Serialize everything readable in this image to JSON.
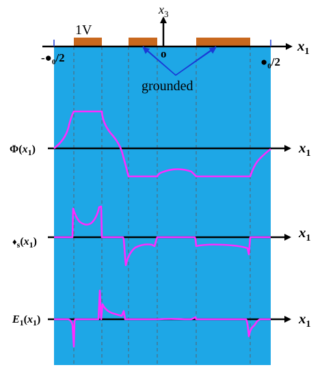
{
  "colors": {
    "background": "#1ea7e6",
    "electrode": "#c8681e",
    "curve": "#ff2bff",
    "axis": "#000000",
    "arrow": "#1a3ad6",
    "guide": "#55606e"
  },
  "top": {
    "voltage_label": "1V",
    "x3_label": "x",
    "x3_sub": "3",
    "origin_label": "o",
    "x1_label": "x",
    "x1_sub": "1",
    "left_end_label": "-●",
    "left_end_sub": "0",
    "left_end_suffix": "/2",
    "right_end_label": "●",
    "right_end_sub": "0",
    "right_end_suffix": "/2",
    "grounded_label": "grounded"
  },
  "plots": [
    {
      "name": "phi",
      "label_main": "Φ(",
      "label_var": "x",
      "label_sub": "1",
      "label_close": ")",
      "axis_label": "x",
      "axis_sub": "1"
    },
    {
      "name": "sigma",
      "label_main": "♦",
      "label_sub_s": "s",
      "label_open": "(",
      "label_var": "x",
      "label_sub": "1",
      "label_close": ")",
      "axis_label": "x",
      "axis_sub": "1"
    },
    {
      "name": "e1",
      "label_main": "E",
      "label_sub_main": "1",
      "label_open": "(",
      "label_var": "x",
      "label_sub": "1",
      "label_close": ")",
      "axis_label": "x",
      "axis_sub": "1"
    }
  ]
}
